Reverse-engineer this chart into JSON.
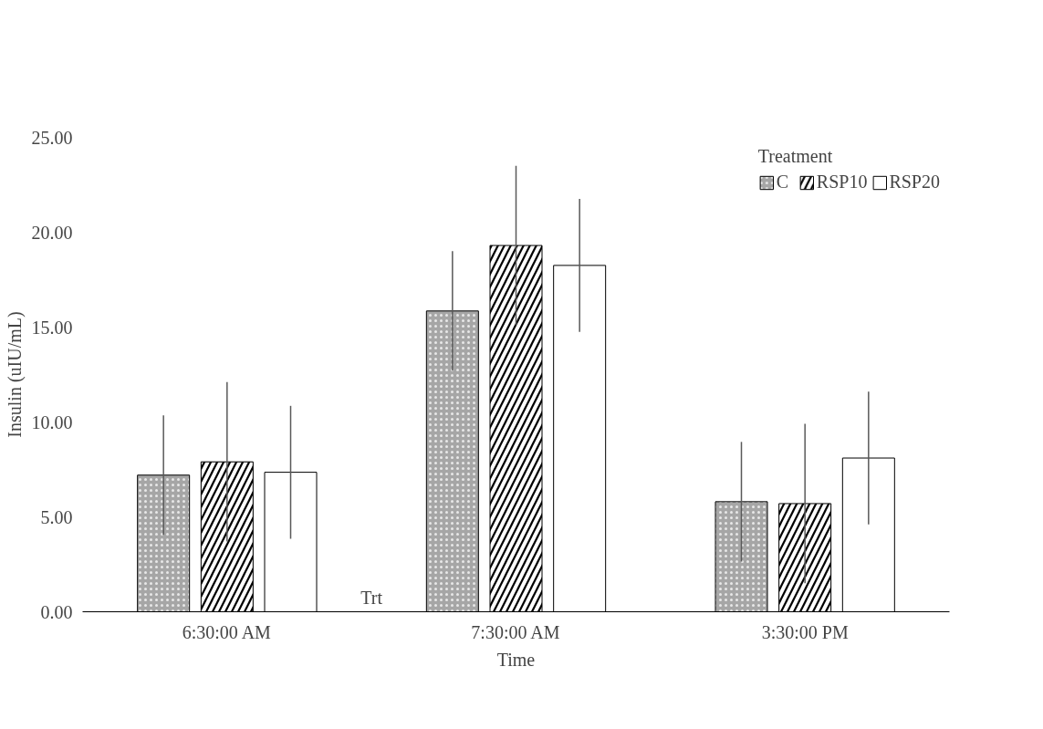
{
  "chart_data": {
    "type": "bar",
    "xlabel": "Time",
    "ylabel": "Insulin (uIU/mL)",
    "legend_title": "Treatment",
    "categories": [
      "6:30:00 AM",
      "7:30:00 AM",
      "3:30:00 PM"
    ],
    "series": [
      {
        "name": "C",
        "color": "#a6a6a6",
        "values": [
          7.2,
          15.85,
          5.8
        ],
        "errors": [
          3.15,
          3.15,
          3.15
        ]
      },
      {
        "name": "RSP10",
        "color": "#000000",
        "values": [
          7.9,
          19.3,
          5.7
        ],
        "errors": [
          4.2,
          4.2,
          4.2
        ]
      },
      {
        "name": "RSP20",
        "color": "#ffffff",
        "values": [
          7.35,
          18.25,
          8.1
        ],
        "errors": [
          3.5,
          3.5,
          3.5
        ]
      }
    ],
    "ylim": [
      0,
      25
    ],
    "yticks": [
      {
        "value": 0,
        "label": "0.00"
      },
      {
        "value": 5,
        "label": "5.00"
      },
      {
        "value": 10,
        "label": "10.00"
      },
      {
        "value": 15,
        "label": "15.00"
      },
      {
        "value": 20,
        "label": "20.00"
      },
      {
        "value": 25,
        "label": "25.00"
      }
    ],
    "annotations": [
      "Trt"
    ],
    "grid": false,
    "legend": "top right"
  }
}
